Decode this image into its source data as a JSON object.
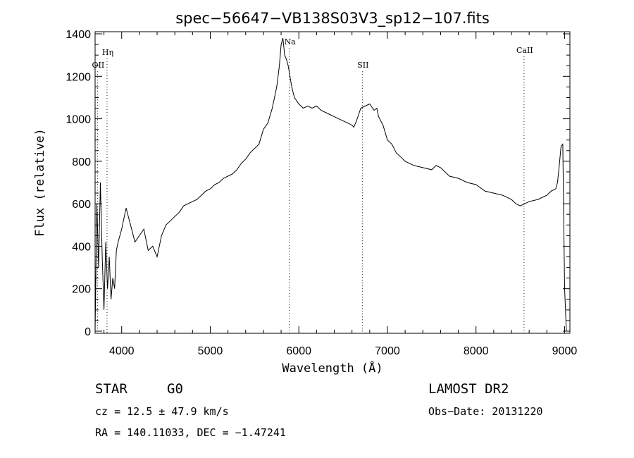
{
  "chart_data": {
    "type": "line",
    "title": "spec−56647−VB138S03V3_sp12−107.fits",
    "xlabel": "Wavelength (Å)",
    "ylabel": "Flux (relative)",
    "xlim": [
      3700,
      9060
    ],
    "ylim": [
      -10,
      1410
    ],
    "xticks": [
      4000,
      5000,
      6000,
      7000,
      8000,
      9000
    ],
    "yticks": [
      0,
      200,
      400,
      600,
      800,
      1000,
      1200,
      1400
    ],
    "grid": false,
    "spectral_lines": [
      {
        "label": "Hη",
        "x": 3835,
        "label_y": 1300
      },
      {
        "label": "OII",
        "x": 3727,
        "label_y": 1240
      },
      {
        "label": "Na",
        "x": 5893,
        "label_y": 1350
      },
      {
        "label": "SII",
        "x": 6717,
        "label_y": 1240
      },
      {
        "label": "CaII",
        "x": 8542,
        "label_y": 1310
      }
    ],
    "series": [
      {
        "x": [
          3700,
          3720,
          3740,
          3760,
          3780,
          3800,
          3820,
          3840,
          3860,
          3880,
          3900,
          3920,
          3940,
          3960,
          3980,
          4000,
          4050,
          4100,
          4150,
          4200,
          4250,
          4300,
          4350,
          4400,
          4450,
          4500,
          4550,
          4600,
          4650,
          4700,
          4750,
          4800,
          4850,
          4900,
          4950,
          5000,
          5050,
          5100,
          5150,
          5200,
          5250,
          5300,
          5350,
          5400,
          5450,
          5500,
          5550,
          5600,
          5650,
          5700,
          5750,
          5780,
          5800,
          5820,
          5840,
          5860,
          5880,
          5900,
          5920,
          5950,
          6000,
          6050,
          6100,
          6150,
          6200,
          6250,
          6300,
          6350,
          6400,
          6450,
          6500,
          6550,
          6600,
          6620,
          6650,
          6700,
          6750,
          6800,
          6850,
          6880,
          6900,
          6950,
          7000,
          7050,
          7100,
          7150,
          7200,
          7300,
          7400,
          7500,
          7550,
          7600,
          7650,
          7700,
          7800,
          7900,
          8000,
          8100,
          8200,
          8300,
          8400,
          8450,
          8500,
          8600,
          8700,
          8800,
          8850,
          8900,
          8920,
          8940,
          8960,
          8980,
          9000,
          9020
        ],
        "y": [
          0,
          600,
          300,
          700,
          350,
          100,
          420,
          200,
          350,
          150,
          250,
          200,
          380,
          420,
          450,
          480,
          580,
          500,
          420,
          450,
          480,
          380,
          400,
          350,
          450,
          500,
          520,
          540,
          560,
          590,
          600,
          610,
          620,
          640,
          660,
          670,
          690,
          700,
          720,
          730,
          740,
          760,
          790,
          810,
          840,
          860,
          880,
          950,
          980,
          1050,
          1150,
          1250,
          1350,
          1380,
          1300,
          1280,
          1250,
          1200,
          1150,
          1100,
          1070,
          1050,
          1060,
          1050,
          1060,
          1040,
          1030,
          1020,
          1010,
          1000,
          990,
          980,
          970,
          960,
          990,
          1050,
          1060,
          1070,
          1040,
          1050,
          1010,
          970,
          900,
          880,
          840,
          820,
          800,
          780,
          770,
          760,
          780,
          770,
          750,
          730,
          720,
          700,
          690,
          660,
          650,
          640,
          620,
          600,
          590,
          610,
          620,
          640,
          660,
          670,
          700,
          780,
          870,
          880,
          200,
          0
        ]
      }
    ]
  },
  "footer": {
    "object_type": "STAR",
    "subclass": "G0",
    "survey": "LAMOST DR2",
    "cz": "cz = 12.5 ± 47.9 km/s",
    "obs_date": "Obs−Date: 20131220",
    "coords": "RA = 140.11033, DEC =  −1.47241"
  }
}
